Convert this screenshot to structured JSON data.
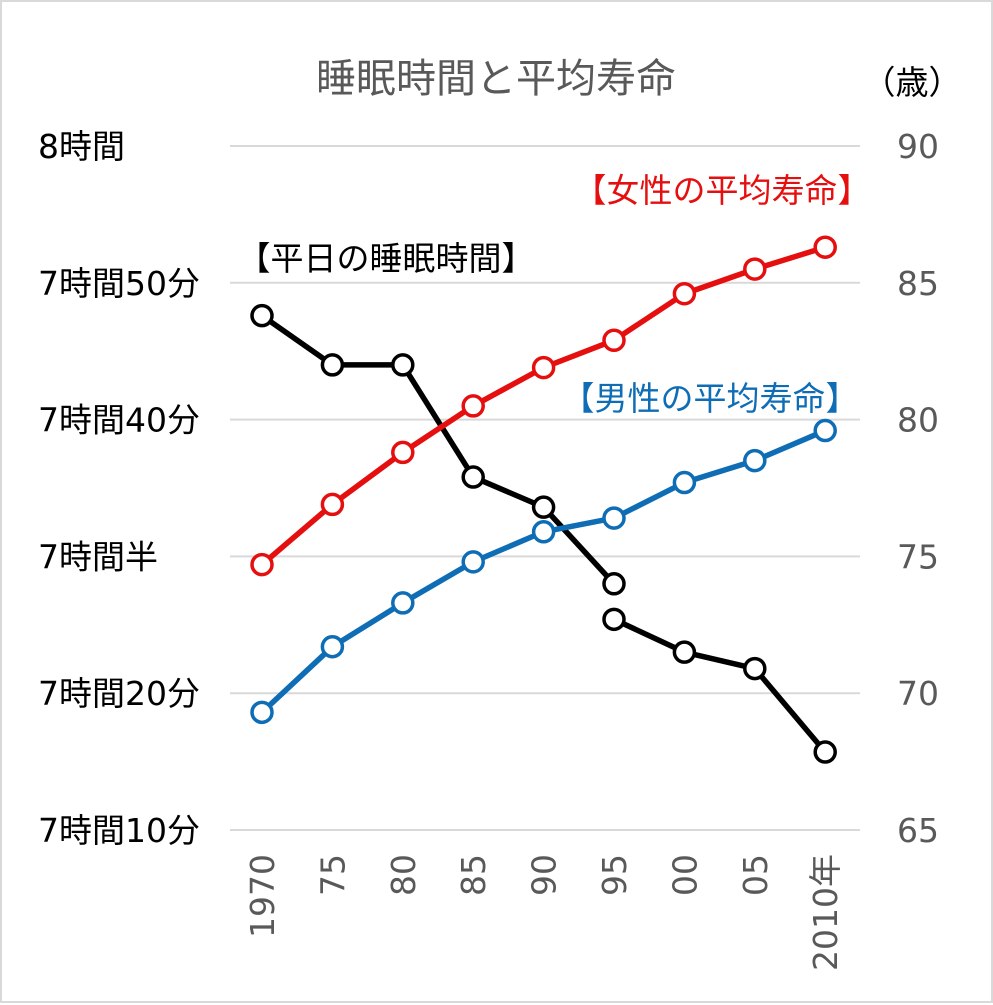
{
  "chart_data": {
    "type": "line",
    "title": "睡眠時間と平均寿命",
    "right_axis_unit": "（歳）",
    "categories": [
      "1970",
      "75",
      "80",
      "85",
      "90",
      "95",
      "00",
      "05",
      "2010年"
    ],
    "left_axis": {
      "unit": "minutes of sleep",
      "ylim": [
        430,
        480
      ],
      "ticks": [
        {
          "value": 480,
          "label": "8時間"
        },
        {
          "value": 470,
          "label": "7時間50分"
        },
        {
          "value": 460,
          "label": "7時間40分"
        },
        {
          "value": 450,
          "label": "7時間半"
        },
        {
          "value": 440,
          "label": "7時間20分"
        },
        {
          "value": 430,
          "label": "7時間10分"
        }
      ]
    },
    "right_axis": {
      "ylim": [
        65,
        90
      ],
      "ticks": [
        {
          "value": 90,
          "label": "90"
        },
        {
          "value": 85,
          "label": "85"
        },
        {
          "value": 80,
          "label": "80"
        },
        {
          "value": 75,
          "label": "75"
        },
        {
          "value": 70,
          "label": "70"
        },
        {
          "value": 65,
          "label": "65"
        }
      ]
    },
    "grid": true,
    "series": [
      {
        "name": "【平日の睡眠時間】",
        "axis": "left",
        "color": "#000000",
        "segments": [
          {
            "from": 0,
            "values": [
              467.6,
              464.0,
              464.0,
              455.8,
              453.6,
              448.0
            ]
          },
          {
            "from": 5,
            "values": [
              445.4,
              443.0,
              441.8,
              435.7
            ]
          }
        ]
      },
      {
        "name": "【女性の平均寿命】",
        "axis": "right",
        "color": "#e50f0f",
        "values": [
          74.7,
          76.9,
          78.8,
          80.5,
          81.9,
          82.9,
          84.6,
          85.5,
          86.3
        ]
      },
      {
        "name": "【男性の平均寿命】",
        "axis": "right",
        "color": "#0e6db5",
        "values": [
          69.3,
          71.7,
          73.3,
          74.8,
          75.9,
          76.4,
          77.7,
          78.5,
          79.6
        ]
      }
    ]
  }
}
